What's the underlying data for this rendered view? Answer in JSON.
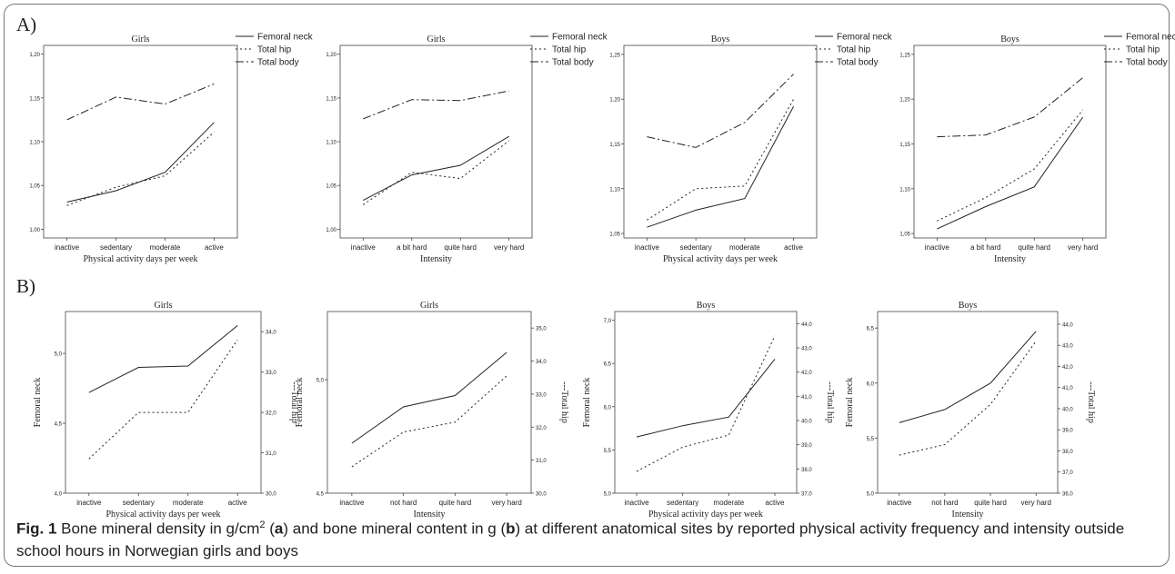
{
  "panel_labels": [
    "A)",
    "B)"
  ],
  "caption": {
    "figure_label": "Fig. 1",
    "text_a": " Bone mineral density in g/cm",
    "sup": "2",
    "text_b": " (",
    "a": "a",
    "text_c": ") and bone mineral content in g (",
    "b": "b",
    "text_d": ") at different anatomical sites by reported physical activity frequency and intensity outside school hours in Norwegian girls and boys"
  },
  "chart_data": [
    {
      "type": "line",
      "panel": "A",
      "title": "Girls",
      "xlabel": "Physical activity days per week",
      "categories": [
        "inactive",
        "sedentary",
        "moderate",
        "active"
      ],
      "ylim": [
        0.99,
        1.21
      ],
      "yticks": [
        "1,00",
        "1,05",
        "1,10",
        "1,15",
        "1,20"
      ],
      "ytick_values": [
        1.0,
        1.05,
        1.1,
        1.15,
        1.2
      ],
      "legend": [
        "Femoral neck",
        "Total hip",
        "Total body"
      ],
      "series": [
        {
          "name": "Femoral neck",
          "style": "solid",
          "values": [
            1.031,
            1.044,
            1.065,
            1.122
          ]
        },
        {
          "name": "Total hip",
          "style": "dotted",
          "values": [
            1.027,
            1.048,
            1.061,
            1.111
          ]
        },
        {
          "name": "Total body",
          "style": "dashdot",
          "values": [
            1.125,
            1.151,
            1.143,
            1.166
          ]
        }
      ]
    },
    {
      "type": "line",
      "panel": "A",
      "title": "Girls",
      "xlabel": "Intensity",
      "categories": [
        "inactive",
        "a bit hard",
        "quite hard",
        "very hard"
      ],
      "ylim": [
        0.99,
        1.21
      ],
      "yticks": [
        "1,00",
        "1,05",
        "1,10",
        "1,15",
        "1,20"
      ],
      "ytick_values": [
        1.0,
        1.05,
        1.1,
        1.15,
        1.2
      ],
      "legend": [
        "Femoral neck",
        "Total hip",
        "Total body"
      ],
      "series": [
        {
          "name": "Femoral neck",
          "style": "solid",
          "values": [
            1.033,
            1.062,
            1.073,
            1.106
          ]
        },
        {
          "name": "Total hip",
          "style": "dotted",
          "values": [
            1.028,
            1.065,
            1.058,
            1.101
          ]
        },
        {
          "name": "Total body",
          "style": "dashdot",
          "values": [
            1.126,
            1.148,
            1.147,
            1.158
          ]
        }
      ]
    },
    {
      "type": "line",
      "panel": "A",
      "title": "Boys",
      "xlabel": "Physical activity days per week",
      "categories": [
        "inactive",
        "sedentary",
        "moderate",
        "active"
      ],
      "ylim": [
        1.045,
        1.26
      ],
      "yticks": [
        "1,05",
        "1,10",
        "1,15",
        "1,20",
        "1,25"
      ],
      "ytick_values": [
        1.05,
        1.1,
        1.15,
        1.2,
        1.25
      ],
      "legend": [
        "Femoral neck",
        "Total hip",
        "Total body"
      ],
      "series": [
        {
          "name": "Femoral neck",
          "style": "solid",
          "values": [
            1.057,
            1.076,
            1.089,
            1.192
          ]
        },
        {
          "name": "Total hip",
          "style": "dotted",
          "values": [
            1.065,
            1.1,
            1.103,
            1.2
          ]
        },
        {
          "name": "Total body",
          "style": "dashdot",
          "values": [
            1.158,
            1.146,
            1.174,
            1.228
          ]
        }
      ]
    },
    {
      "type": "line",
      "panel": "A",
      "title": "Boys",
      "xlabel": "Intensity",
      "categories": [
        "inactive",
        "a bit hard",
        "quite hard",
        "very hard"
      ],
      "ylim": [
        1.045,
        1.26
      ],
      "yticks": [
        "1,05",
        "1,10",
        "1,15",
        "1,20",
        "1,25"
      ],
      "ytick_values": [
        1.05,
        1.1,
        1.15,
        1.2,
        1.25
      ],
      "legend": [
        "Femoral neck",
        "Total hip",
        "Total body"
      ],
      "series": [
        {
          "name": "Femoral neck",
          "style": "solid",
          "values": [
            1.055,
            1.08,
            1.102,
            1.18
          ]
        },
        {
          "name": "Total hip",
          "style": "dotted",
          "values": [
            1.064,
            1.09,
            1.122,
            1.188
          ]
        },
        {
          "name": "Total body",
          "style": "dashdot",
          "values": [
            1.158,
            1.16,
            1.18,
            1.224
          ]
        }
      ]
    },
    {
      "type": "line",
      "panel": "B",
      "title": "Girls",
      "xlabel": "Physical activity days per week",
      "categories": [
        "inactive",
        "sedentary",
        "moderate",
        "active"
      ],
      "ylabel": "Femoral neck",
      "y2label": "---Total hip",
      "ylim": [
        4.0,
        5.3
      ],
      "yticks": [
        "4,0",
        "4,5",
        "5,0"
      ],
      "ytick_values": [
        4.0,
        4.5,
        5.0
      ],
      "y2lim": [
        30.0,
        34.5
      ],
      "y2ticks": [
        "30,0",
        "31,0",
        "32,0",
        "33,0",
        "34,0"
      ],
      "y2tick_values": [
        30.0,
        31.0,
        32.0,
        33.0,
        34.0
      ],
      "series": [
        {
          "name": "Femoral neck",
          "axis": "left",
          "style": "solid",
          "values": [
            4.72,
            4.9,
            4.91,
            5.2
          ]
        },
        {
          "name": "Total hip",
          "axis": "right",
          "style": "dotted",
          "values": [
            30.85,
            32.0,
            32.0,
            33.8
          ]
        }
      ]
    },
    {
      "type": "line",
      "panel": "B",
      "title": "Girls",
      "xlabel": "Intensity",
      "categories": [
        "inactive",
        "not hard",
        "quite hard",
        "very hard"
      ],
      "ylabel": "Femoral neck",
      "y2label": "---Total hip",
      "ylim": [
        4.5,
        5.3
      ],
      "yticks": [
        "4,5",
        "5,0"
      ],
      "ytick_values": [
        4.5,
        5.0
      ],
      "y2lim": [
        30.0,
        35.5
      ],
      "y2ticks": [
        "30,0",
        "31,0",
        "32,0",
        "33,0",
        "34,0",
        "35,0"
      ],
      "y2tick_values": [
        30.0,
        31.0,
        32.0,
        33.0,
        34.0,
        35.0
      ],
      "series": [
        {
          "name": "Femoral neck",
          "axis": "left",
          "style": "solid",
          "values": [
            4.72,
            4.88,
            4.93,
            5.12
          ]
        },
        {
          "name": "Total hip",
          "axis": "right",
          "style": "dotted",
          "values": [
            30.8,
            31.85,
            32.15,
            33.55
          ]
        }
      ]
    },
    {
      "type": "line",
      "panel": "B",
      "title": "Boys",
      "xlabel": "Physical activity days per week",
      "categories": [
        "inactive",
        "sedentary",
        "moderate",
        "active"
      ],
      "ylabel": "Femoral neck",
      "y2label": "---Total hip",
      "ylim": [
        5.0,
        7.1
      ],
      "yticks": [
        "5,0",
        "5,5",
        "6,0",
        "6,5",
        "7,0"
      ],
      "ytick_values": [
        5.0,
        5.5,
        6.0,
        6.5,
        7.0
      ],
      "y2lim": [
        37.0,
        44.5
      ],
      "y2ticks": [
        "37,0",
        "38,0",
        "39,0",
        "40,0",
        "41,0",
        "42,0",
        "43,0",
        "44,0"
      ],
      "y2tick_values": [
        37.0,
        38.0,
        39.0,
        40.0,
        41.0,
        42.0,
        43.0,
        44.0
      ],
      "series": [
        {
          "name": "Femoral neck",
          "axis": "left",
          "style": "solid",
          "values": [
            5.65,
            5.78,
            5.88,
            6.55
          ]
        },
        {
          "name": "Total hip",
          "axis": "right",
          "style": "dotted",
          "values": [
            37.9,
            38.9,
            39.4,
            43.5
          ]
        }
      ]
    },
    {
      "type": "line",
      "panel": "B",
      "title": "Boys",
      "xlabel": "Intensity",
      "categories": [
        "inactive",
        "not hard",
        "quite hard",
        "very hard"
      ],
      "ylabel": "Femoral neck",
      "y2label": "---Total hip",
      "ylim": [
        5.0,
        6.65
      ],
      "yticks": [
        "5,0",
        "5,5",
        "6,0",
        "6,5"
      ],
      "ytick_values": [
        5.0,
        5.5,
        6.0,
        6.5
      ],
      "y2lim": [
        36.0,
        44.6
      ],
      "y2ticks": [
        "36,0",
        "37,0",
        "38,0",
        "39,0",
        "40,0",
        "41,0",
        "42,0",
        "43,0",
        "44,0"
      ],
      "y2tick_values": [
        36.0,
        37.0,
        38.0,
        39.0,
        40.0,
        41.0,
        42.0,
        43.0,
        44.0
      ],
      "series": [
        {
          "name": "Femoral neck",
          "axis": "left",
          "style": "solid",
          "values": [
            5.64,
            5.76,
            6.0,
            6.47
          ]
        },
        {
          "name": "Total hip",
          "axis": "right",
          "style": "dotted",
          "values": [
            37.8,
            38.3,
            40.2,
            43.2
          ]
        }
      ]
    }
  ]
}
